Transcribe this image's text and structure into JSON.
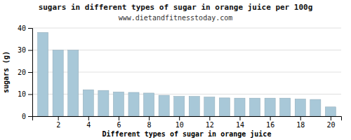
{
  "chart_data": {
    "type": "bar",
    "title": "sugars in different types of sugar in orange juice per 100g",
    "subtitle": "www.dietandfitnesstoday.com",
    "xlabel": "Different types of sugar in orange juice",
    "ylabel": "sugars (g)",
    "x": [
      1,
      2,
      3,
      4,
      5,
      6,
      7,
      8,
      9,
      10,
      11,
      12,
      13,
      14,
      15,
      16,
      17,
      18,
      19,
      20
    ],
    "values": [
      38,
      30,
      30,
      12,
      11.7,
      11,
      10.8,
      10.5,
      9.5,
      9.0,
      9.0,
      8.7,
      8.3,
      8.2,
      8.2,
      8.2,
      8.2,
      7.8,
      7.6,
      4.2
    ],
    "color": "#a8c8d8",
    "xlim": [
      0.3,
      20.7
    ],
    "xticks": [
      2,
      4,
      6,
      8,
      10,
      12,
      14,
      16,
      18,
      20
    ],
    "ylim": [
      0,
      40
    ],
    "yticks": [
      0,
      10,
      20,
      30,
      40
    ],
    "grid": true
  }
}
